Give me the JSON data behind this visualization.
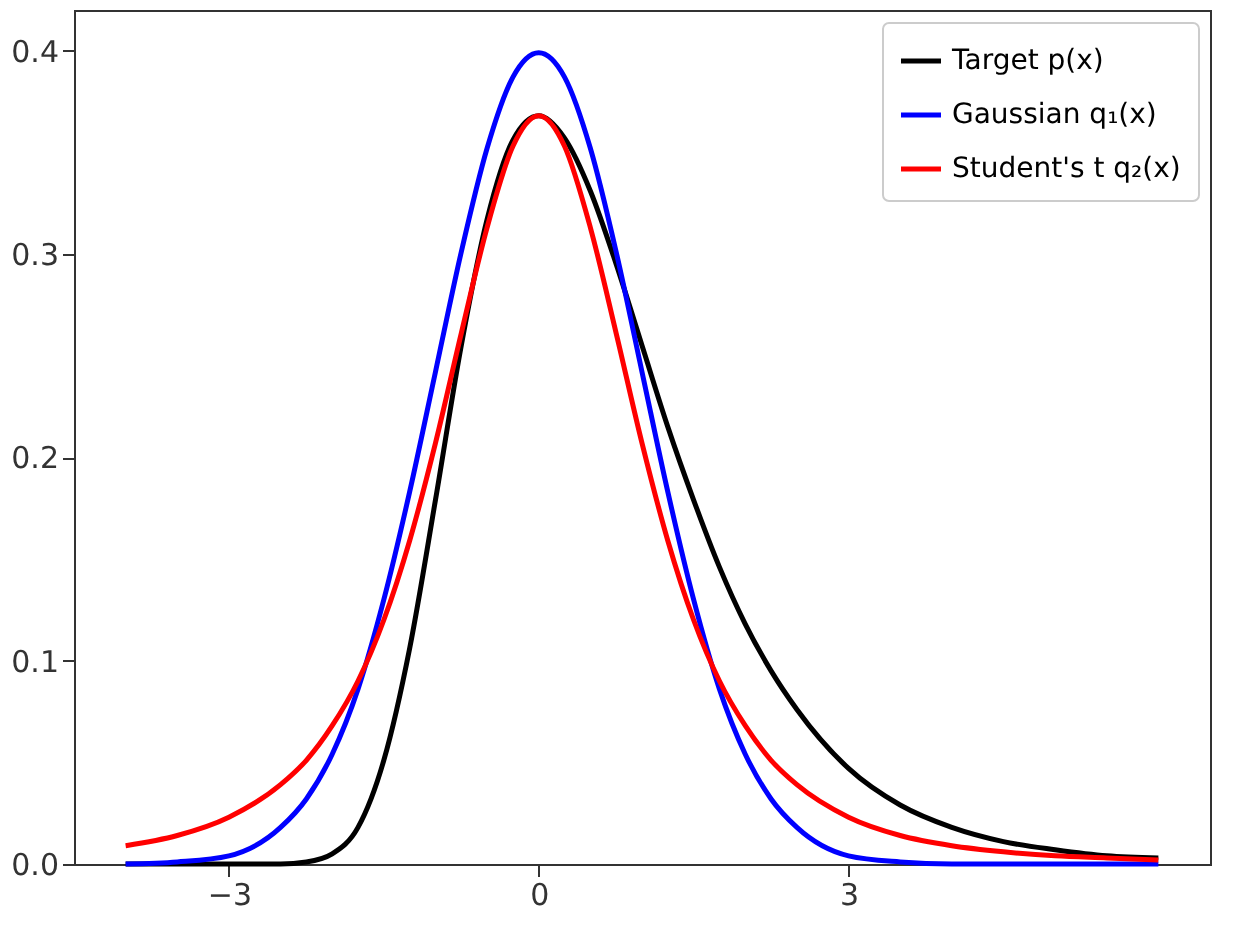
{
  "chart_data": {
    "type": "line",
    "x": [
      -4,
      -3.5,
      -3,
      -2.5,
      -2.25,
      -2,
      -1.75,
      -1.5,
      -1.25,
      -1,
      -0.75,
      -0.5,
      -0.25,
      0,
      0.25,
      0.5,
      0.75,
      1,
      1.25,
      1.5,
      1.75,
      2,
      2.25,
      2.5,
      3,
      3.5,
      4,
      4.5,
      5,
      5.5,
      6
    ],
    "series": [
      {
        "name": "Target p(x)",
        "color": "#000000",
        "values": [
          0,
          0,
          0,
          0,
          0.001,
          0.005,
          0.018,
          0.051,
          0.106,
          0.179,
          0.255,
          0.317,
          0.356,
          0.368,
          0.357,
          0.331,
          0.295,
          0.255,
          0.215,
          0.179,
          0.146,
          0.118,
          0.095,
          0.076,
          0.047,
          0.029,
          0.018,
          0.011,
          0.007,
          0.004,
          0.003
        ]
      },
      {
        "name": "Gaussian q₁(x)",
        "color": "#0000ff",
        "values": [
          0,
          0.001,
          0.004,
          0.018,
          0.032,
          0.054,
          0.086,
          0.13,
          0.183,
          0.242,
          0.301,
          0.352,
          0.387,
          0.399,
          0.387,
          0.352,
          0.301,
          0.242,
          0.183,
          0.13,
          0.086,
          0.054,
          0.032,
          0.018,
          0.004,
          0.001,
          0,
          0,
          0,
          0,
          0
        ]
      },
      {
        "name": "Student's t q₂(x)",
        "color": "#ff0000",
        "values": [
          0.009,
          0.014,
          0.023,
          0.039,
          0.051,
          0.068,
          0.09,
          0.12,
          0.159,
          0.207,
          0.261,
          0.313,
          0.353,
          0.368,
          0.353,
          0.313,
          0.261,
          0.207,
          0.159,
          0.12,
          0.09,
          0.068,
          0.051,
          0.039,
          0.023,
          0.014,
          0.009,
          0.006,
          0.004,
          0.003,
          0.002
        ]
      }
    ],
    "xlim": [
      -4.5,
      6.5
    ],
    "ylim": [
      0,
      0.42
    ],
    "xticks": [
      {
        "value": -3,
        "label": "−3"
      },
      0,
      3
    ],
    "yticks": [
      {
        "value": 0,
        "label": "0.0"
      },
      0.1,
      0.2,
      0.3,
      0.4
    ],
    "grid": false,
    "legend": "top right",
    "marker": "none",
    "line_style": "solid"
  }
}
